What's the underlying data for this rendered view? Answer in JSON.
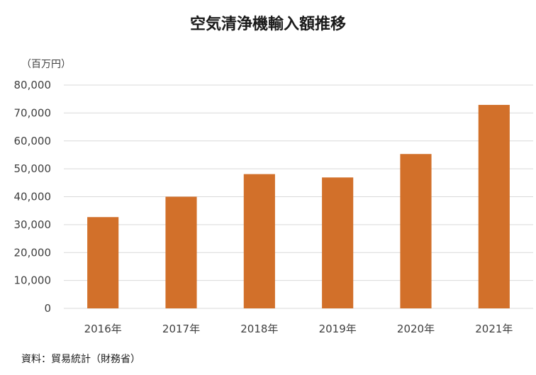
{
  "chart_data": {
    "type": "bar",
    "title": "空気清浄機輸入額推移",
    "unit_label": "（百万円）",
    "source": "資料：貿易統計（財務省）",
    "categories": [
      "2016年",
      "2017年",
      "2018年",
      "2019年",
      "2020年",
      "2021年"
    ],
    "values": [
      32700,
      40000,
      48100,
      46900,
      55300,
      72900
    ],
    "ylim": [
      0,
      80000
    ],
    "yticks": [
      0,
      10000,
      20000,
      30000,
      40000,
      50000,
      60000,
      70000,
      80000
    ],
    "ytick_labels": [
      "0",
      "10,000",
      "20,000",
      "30,000",
      "40,000",
      "50,000",
      "60,000",
      "70,000",
      "80,000"
    ],
    "grid": true,
    "bar_color": "#D2702A",
    "grid_color": "#D9D9D9"
  }
}
